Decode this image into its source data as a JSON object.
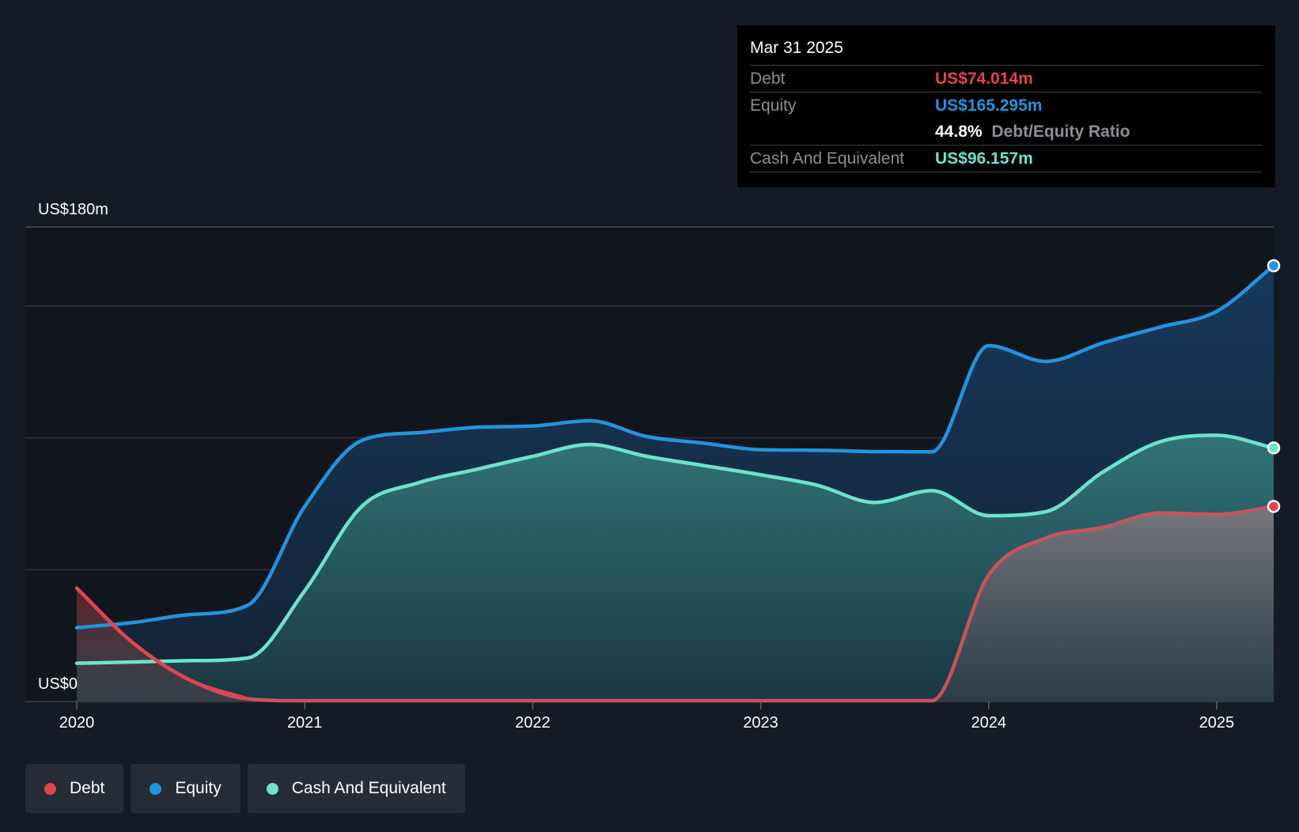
{
  "colors": {
    "debt": "#e5424f",
    "equity": "#2394df",
    "cash": "#6ce4cd",
    "background": "#151b24",
    "plot_background": "#11161d",
    "grid": "#2d333c"
  },
  "tooltip": {
    "date": "Mar 31 2025",
    "debt_label": "Debt",
    "debt_value": "US$74.014m",
    "equity_label": "Equity",
    "equity_value": "US$165.295m",
    "ratio_value": "44.8%",
    "ratio_label": "Debt/Equity Ratio",
    "cash_label": "Cash And Equivalent",
    "cash_value": "US$96.157m"
  },
  "legend": {
    "debt": "Debt",
    "equity": "Equity",
    "cash": "Cash And Equivalent"
  },
  "chart_data": {
    "type": "area",
    "title": "",
    "xlabel": "",
    "ylabel": "",
    "y_top_label": "US$180m",
    "y_bottom_label": "US$0",
    "ylim": [
      0,
      180
    ],
    "xlim": [
      2020.0,
      2025.25
    ],
    "x_ticks": [
      {
        "value": 2020,
        "label": "2020"
      },
      {
        "value": 2021,
        "label": "2021"
      },
      {
        "value": 2022,
        "label": "2022"
      },
      {
        "value": 2023,
        "label": "2023"
      },
      {
        "value": 2024,
        "label": "2024"
      },
      {
        "value": 2025,
        "label": "2025"
      }
    ],
    "grid_values": [
      50,
      100,
      150,
      180
    ],
    "series": [
      {
        "name": "Equity",
        "key": "equity",
        "x": [
          2020.0,
          2020.25,
          2020.5,
          2020.75,
          2021.0,
          2021.25,
          2021.5,
          2021.75,
          2022.0,
          2022.25,
          2022.5,
          2022.75,
          2023.0,
          2023.25,
          2023.5,
          2023.75,
          2024.0,
          2024.25,
          2024.5,
          2024.75,
          2025.0,
          2025.25
        ],
        "values": [
          28,
          30,
          33,
          36.5,
          74,
          99,
          102,
          104,
          104.5,
          106.5,
          100.5,
          98,
          95.5,
          95.3,
          94.8,
          94.7,
          135,
          129,
          136,
          142,
          148,
          165.3
        ]
      },
      {
        "name": "Cash And Equivalent",
        "key": "cash",
        "x": [
          2020.0,
          2020.25,
          2020.5,
          2020.75,
          2021.0,
          2021.25,
          2021.5,
          2021.75,
          2022.0,
          2022.25,
          2022.5,
          2022.75,
          2023.0,
          2023.25,
          2023.5,
          2023.75,
          2024.0,
          2024.25,
          2024.5,
          2024.75,
          2025.0,
          2025.25
        ],
        "values": [
          14.5,
          15,
          15.5,
          16.5,
          42,
          74,
          83,
          88,
          93,
          97.5,
          93,
          89.5,
          86,
          82,
          75.5,
          80,
          70.5,
          72,
          87,
          98.5,
          101,
          96.2
        ]
      },
      {
        "name": "Debt",
        "key": "debt",
        "x": [
          2020.0,
          2020.25,
          2020.5,
          2020.75,
          2021.0,
          2021.25,
          2021.5,
          2021.75,
          2022.0,
          2022.25,
          2022.5,
          2022.75,
          2023.0,
          2023.25,
          2023.5,
          2023.75,
          2024.0,
          2024.25,
          2024.5,
          2024.75,
          2025.0,
          2025.25
        ],
        "values": [
          43,
          22,
          8,
          1,
          0.3,
          0.3,
          0.3,
          0.3,
          0.3,
          0.3,
          0.3,
          0.3,
          0.3,
          0.3,
          0.3,
          0.3,
          48,
          62,
          66,
          71.5,
          71,
          74
        ]
      }
    ]
  }
}
